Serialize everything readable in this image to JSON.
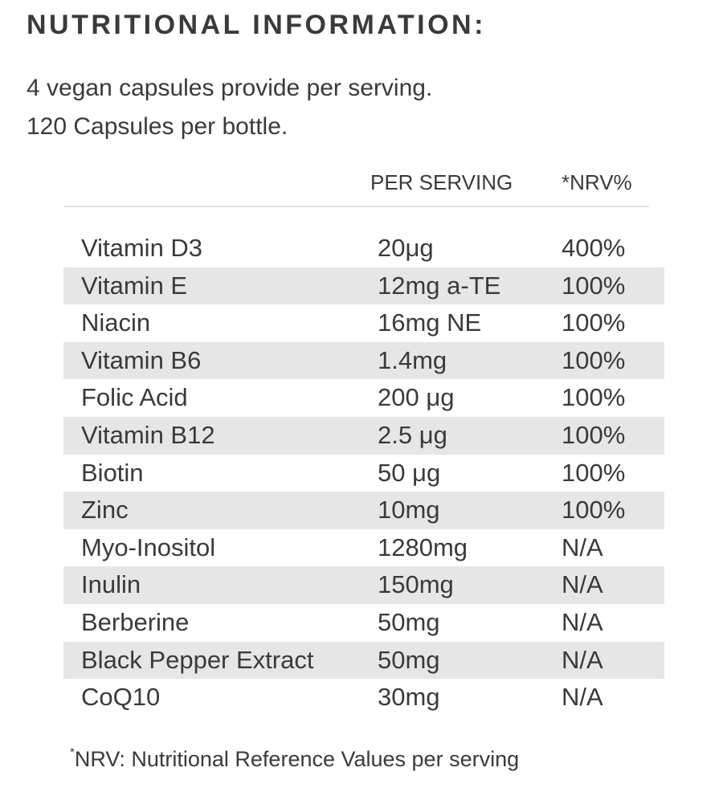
{
  "heading": "NUTRITIONAL INFORMATION:",
  "intro": {
    "line1": "4 vegan capsules provide per serving.",
    "line2": "120 Capsules per bottle."
  },
  "columns": {
    "per_serving": "PER SERVING",
    "nrv": "*NRV%"
  },
  "rows": [
    {
      "name": "Vitamin D3",
      "amount": "20μg",
      "nrv": "400%"
    },
    {
      "name": "Vitamin E",
      "amount": "12mg a-TE",
      "nrv": "100%"
    },
    {
      "name": "Niacin",
      "amount": "16mg NE",
      "nrv": "100%"
    },
    {
      "name": "Vitamin B6",
      "amount": "1.4mg",
      "nrv": "100%"
    },
    {
      "name": "Folic Acid",
      "amount": "200 μg",
      "nrv": "100%"
    },
    {
      "name": "Vitamin B12",
      "amount": "2.5 μg",
      "nrv": "100%"
    },
    {
      "name": "Biotin",
      "amount": "50 μg",
      "nrv": "100%"
    },
    {
      "name": "Zinc",
      "amount": "10mg",
      "nrv": "100%"
    },
    {
      "name": "Myo-Inositol",
      "amount": "1280mg",
      "nrv": "N/A"
    },
    {
      "name": "Inulin",
      "amount": "150mg",
      "nrv": "N/A"
    },
    {
      "name": "Berberine",
      "amount": "50mg",
      "nrv": "N/A"
    },
    {
      "name": "Black Pepper Extract",
      "amount": "50mg",
      "nrv": "N/A"
    },
    {
      "name": "CoQ10",
      "amount": "30mg",
      "nrv": "N/A"
    }
  ],
  "footnote": {
    "marker": "*",
    "text": "NRV: Nutritional Reference Values per serving"
  }
}
